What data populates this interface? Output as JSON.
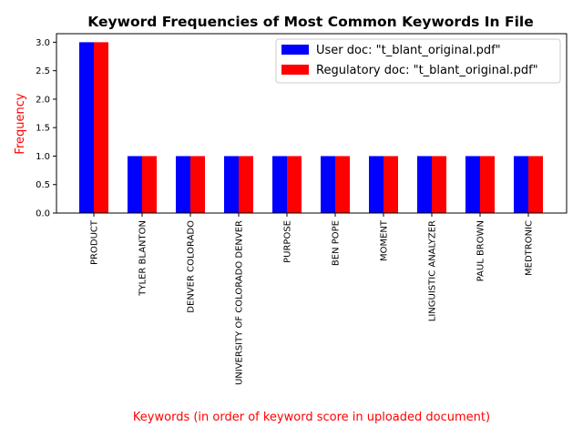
{
  "chart_data": {
    "type": "bar",
    "title": "Keyword Frequencies of Most Common Keywords In File",
    "xlabel": "Keywords (in order of keyword score in uploaded document)",
    "ylabel": "Frequency",
    "categories": [
      "PRODUCT",
      "TYLER BLANTON",
      "DENVER COLORADO",
      "UNIVERSITY OF COLORADO DENVER",
      "PURPOSE",
      "BEN POPE",
      "MOMENT",
      "LINGUISTIC ANALYZER",
      "PAUL BROWN",
      "MEDTRONIC"
    ],
    "series": [
      {
        "name": "User doc: \"t_blant_original.pdf\"",
        "color": "#0000ff",
        "values": [
          3,
          1,
          1,
          1,
          1,
          1,
          1,
          1,
          1,
          1
        ]
      },
      {
        "name": "Regulatory doc: \"t_blant_original.pdf\"",
        "color": "#ff0000",
        "values": [
          3,
          1,
          1,
          1,
          1,
          1,
          1,
          1,
          1,
          1
        ]
      }
    ],
    "ylim": [
      0,
      3.15
    ],
    "yticks": [
      0.0,
      0.5,
      1.0,
      1.5,
      2.0,
      2.5,
      3.0
    ],
    "grid": false,
    "legend_position": "top-right",
    "label_color": "#ff0000"
  }
}
